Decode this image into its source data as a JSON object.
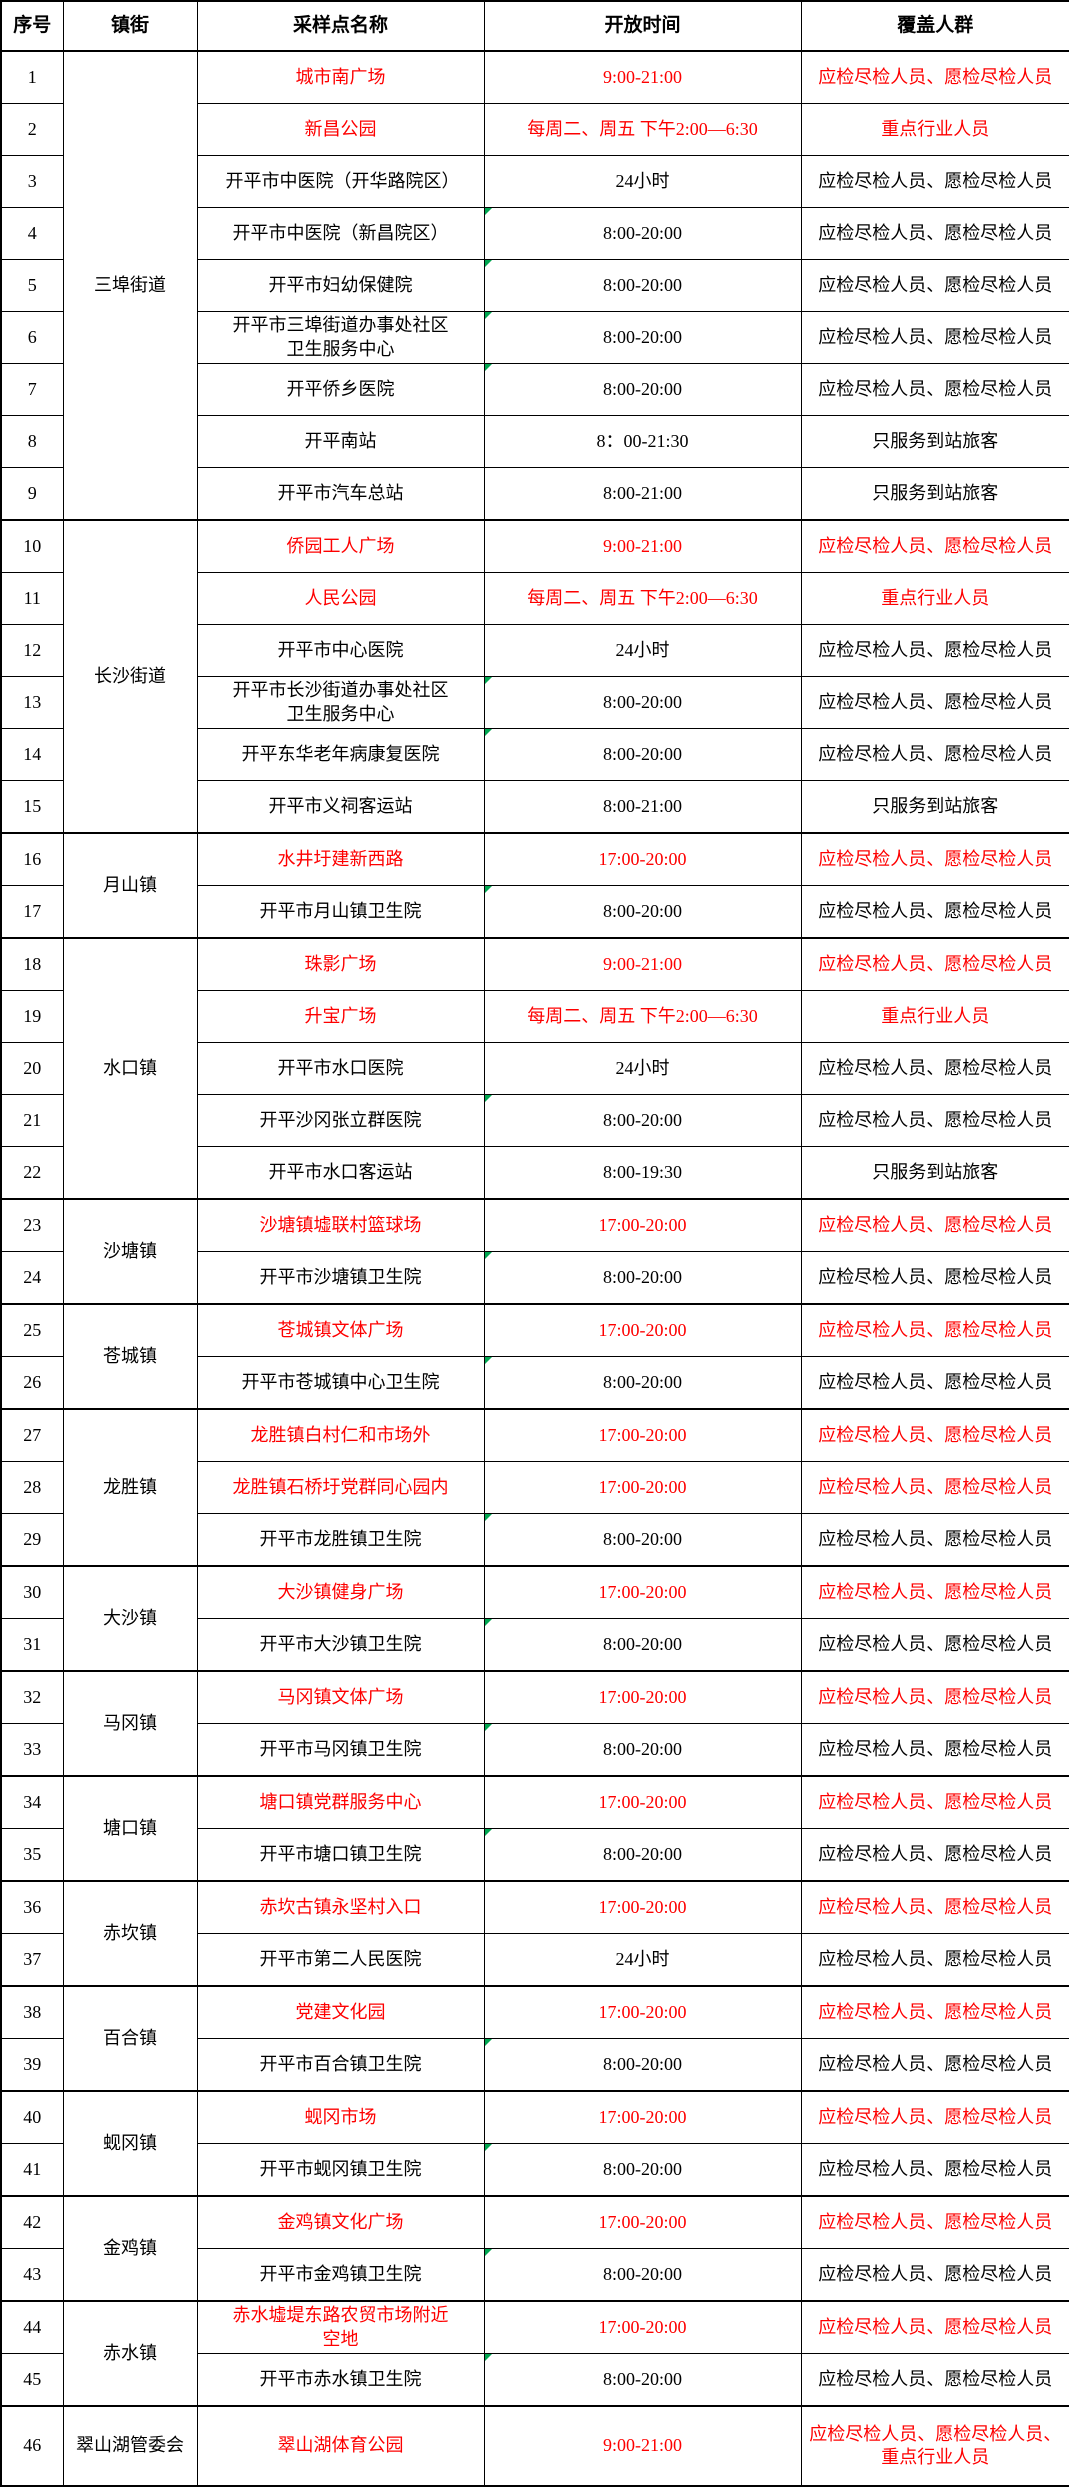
{
  "table": {
    "colors": {
      "red_text": "#fe0000",
      "black_text": "#000000",
      "marker_green": "#00a650",
      "border": "#000000"
    },
    "columns": [
      {
        "label": "序号"
      },
      {
        "label": "镇街"
      },
      {
        "label": "采样点名称"
      },
      {
        "label": "开放时间"
      },
      {
        "label": "覆盖人群"
      }
    ],
    "rows": [
      {
        "no": 1,
        "town": "三埠街道",
        "town_rowspan": 9,
        "group_start": true,
        "name": "城市南广场",
        "time": "9:00-21:00",
        "crowd": "应检尽检人员、愿检尽检人员",
        "red": true,
        "marker": false,
        "tall": false
      },
      {
        "no": 2,
        "group_start": false,
        "name": "新昌公园",
        "time": "每周二、周五 下午2:00—6:30",
        "crowd": "重点行业人员",
        "red": true,
        "marker": false,
        "tall": false
      },
      {
        "no": 3,
        "group_start": false,
        "name": "开平市中医院（开华路院区）",
        "time": "24小时",
        "crowd": "应检尽检人员、愿检尽检人员",
        "red": false,
        "marker": false,
        "tall": false
      },
      {
        "no": 4,
        "group_start": false,
        "name": "开平市中医院（新昌院区）",
        "time": "8:00-20:00",
        "crowd": "应检尽检人员、愿检尽检人员",
        "red": false,
        "marker": true,
        "tall": false
      },
      {
        "no": 5,
        "group_start": false,
        "name": "开平市妇幼保健院",
        "time": "8:00-20:00",
        "crowd": "应检尽检人员、愿检尽检人员",
        "red": false,
        "marker": true,
        "tall": false
      },
      {
        "no": 6,
        "group_start": false,
        "name": "开平市三埠街道办事处社区卫生服务中心",
        "time": "8:00-20:00",
        "crowd": "应检尽检人员、愿检尽检人员",
        "red": false,
        "marker": true,
        "tall": false
      },
      {
        "no": 7,
        "group_start": false,
        "name": "开平侨乡医院",
        "time": "8:00-20:00",
        "crowd": "应检尽检人员、愿检尽检人员",
        "red": false,
        "marker": true,
        "tall": false
      },
      {
        "no": 8,
        "group_start": false,
        "name": "开平南站",
        "time": "8：00-21:30",
        "crowd": "只服务到站旅客",
        "red": false,
        "marker": false,
        "tall": false
      },
      {
        "no": 9,
        "group_start": false,
        "name": "开平市汽车总站",
        "time": "8:00-21:00",
        "crowd": "只服务到站旅客",
        "red": false,
        "marker": false,
        "tall": false
      },
      {
        "no": 10,
        "town": "长沙街道",
        "town_rowspan": 6,
        "group_start": true,
        "name": "侨园工人广场",
        "time": "9:00-21:00",
        "crowd": "应检尽检人员、愿检尽检人员",
        "red": true,
        "marker": false,
        "tall": false
      },
      {
        "no": 11,
        "group_start": false,
        "name": "人民公园",
        "time": "每周二、周五 下午2:00—6:30",
        "crowd": "重点行业人员",
        "red": true,
        "marker": false,
        "tall": false
      },
      {
        "no": 12,
        "group_start": false,
        "name": "开平市中心医院",
        "time": "24小时",
        "crowd": "应检尽检人员、愿检尽检人员",
        "red": false,
        "marker": false,
        "tall": false
      },
      {
        "no": 13,
        "group_start": false,
        "name": "开平市长沙街道办事处社区卫生服务中心",
        "time": "8:00-20:00",
        "crowd": "应检尽检人员、愿检尽检人员",
        "red": false,
        "marker": true,
        "tall": false
      },
      {
        "no": 14,
        "group_start": false,
        "name": "开平东华老年病康复医院",
        "time": "8:00-20:00",
        "crowd": "应检尽检人员、愿检尽检人员",
        "red": false,
        "marker": true,
        "tall": false
      },
      {
        "no": 15,
        "group_start": false,
        "name": "开平市义祠客运站",
        "time": "8:00-21:00",
        "crowd": "只服务到站旅客",
        "red": false,
        "marker": false,
        "tall": false
      },
      {
        "no": 16,
        "town": "月山镇",
        "town_rowspan": 2,
        "group_start": true,
        "name": "水井圩建新西路",
        "time": "17:00-20:00",
        "crowd": "应检尽检人员、愿检尽检人员",
        "red": true,
        "marker": false,
        "tall": false
      },
      {
        "no": 17,
        "group_start": false,
        "name": "开平市月山镇卫生院",
        "time": "8:00-20:00",
        "crowd": "应检尽检人员、愿检尽检人员",
        "red": false,
        "marker": true,
        "tall": false
      },
      {
        "no": 18,
        "town": "水口镇",
        "town_rowspan": 5,
        "group_start": true,
        "name": "珠影广场",
        "time": "9:00-21:00",
        "crowd": "应检尽检人员、愿检尽检人员",
        "red": true,
        "marker": false,
        "tall": false
      },
      {
        "no": 19,
        "group_start": false,
        "name": "升宝广场",
        "time": "每周二、周五 下午2:00—6:30",
        "crowd": "重点行业人员",
        "red": true,
        "marker": false,
        "tall": false
      },
      {
        "no": 20,
        "group_start": false,
        "name": "开平市水口医院",
        "time": "24小时",
        "crowd": "应检尽检人员、愿检尽检人员",
        "red": false,
        "marker": false,
        "tall": false
      },
      {
        "no": 21,
        "group_start": false,
        "name": "开平沙冈张立群医院",
        "time": "8:00-20:00",
        "crowd": "应检尽检人员、愿检尽检人员",
        "red": false,
        "marker": true,
        "tall": false
      },
      {
        "no": 22,
        "group_start": false,
        "name": "开平市水口客运站",
        "time": "8:00-19:30",
        "crowd": "只服务到站旅客",
        "red": false,
        "marker": false,
        "tall": false
      },
      {
        "no": 23,
        "town": "沙塘镇",
        "town_rowspan": 2,
        "group_start": true,
        "name": "沙塘镇墟联村篮球场",
        "time": "17:00-20:00",
        "crowd": "应检尽检人员、愿检尽检人员",
        "red": true,
        "marker": false,
        "tall": false
      },
      {
        "no": 24,
        "group_start": false,
        "name": "开平市沙塘镇卫生院",
        "time": "8:00-20:00",
        "crowd": "应检尽检人员、愿检尽检人员",
        "red": false,
        "marker": true,
        "tall": false
      },
      {
        "no": 25,
        "town": "苍城镇",
        "town_rowspan": 2,
        "group_start": true,
        "name": "苍城镇文体广场",
        "time": "17:00-20:00",
        "crowd": "应检尽检人员、愿检尽检人员",
        "red": true,
        "marker": false,
        "tall": false
      },
      {
        "no": 26,
        "group_start": false,
        "name": "开平市苍城镇中心卫生院",
        "time": "8:00-20:00",
        "crowd": "应检尽检人员、愿检尽检人员",
        "red": false,
        "marker": true,
        "tall": false
      },
      {
        "no": 27,
        "town": "龙胜镇",
        "town_rowspan": 3,
        "group_start": true,
        "name": "龙胜镇白村仁和市场外",
        "time": "17:00-20:00",
        "crowd": "应检尽检人员、愿检尽检人员",
        "red": true,
        "marker": false,
        "tall": false
      },
      {
        "no": 28,
        "group_start": false,
        "name": "龙胜镇石桥圩党群同心园内",
        "time": "17:00-20:00",
        "crowd": "应检尽检人员、愿检尽检人员",
        "red": true,
        "marker": false,
        "tall": false
      },
      {
        "no": 29,
        "group_start": false,
        "name": "开平市龙胜镇卫生院",
        "time": "8:00-20:00",
        "crowd": "应检尽检人员、愿检尽检人员",
        "red": false,
        "marker": true,
        "tall": false
      },
      {
        "no": 30,
        "town": "大沙镇",
        "town_rowspan": 2,
        "group_start": true,
        "name": "大沙镇健身广场",
        "time": "17:00-20:00",
        "crowd": "应检尽检人员、愿检尽检人员",
        "red": true,
        "marker": false,
        "tall": false
      },
      {
        "no": 31,
        "group_start": false,
        "name": "开平市大沙镇卫生院",
        "time": "8:00-20:00",
        "crowd": "应检尽检人员、愿检尽检人员",
        "red": false,
        "marker": true,
        "tall": false
      },
      {
        "no": 32,
        "town": "马冈镇",
        "town_rowspan": 2,
        "group_start": true,
        "name": "马冈镇文体广场",
        "time": "17:00-20:00",
        "crowd": "应检尽检人员、愿检尽检人员",
        "red": true,
        "marker": false,
        "tall": false
      },
      {
        "no": 33,
        "group_start": false,
        "name": "开平市马冈镇卫生院",
        "time": "8:00-20:00",
        "crowd": "应检尽检人员、愿检尽检人员",
        "red": false,
        "marker": true,
        "tall": false
      },
      {
        "no": 34,
        "town": "塘口镇",
        "town_rowspan": 2,
        "group_start": true,
        "name": "塘口镇党群服务中心",
        "time": "17:00-20:00",
        "crowd": "应检尽检人员、愿检尽检人员",
        "red": true,
        "marker": false,
        "tall": false
      },
      {
        "no": 35,
        "group_start": false,
        "name": "开平市塘口镇卫生院",
        "time": "8:00-20:00",
        "crowd": "应检尽检人员、愿检尽检人员",
        "red": false,
        "marker": true,
        "tall": false
      },
      {
        "no": 36,
        "town": "赤坎镇",
        "town_rowspan": 2,
        "group_start": true,
        "name": "赤坎古镇永坚村入口",
        "time": "17:00-20:00",
        "crowd": "应检尽检人员、愿检尽检人员",
        "red": true,
        "marker": false,
        "tall": false
      },
      {
        "no": 37,
        "group_start": false,
        "name": "开平市第二人民医院",
        "time": "24小时",
        "crowd": "应检尽检人员、愿检尽检人员",
        "red": false,
        "marker": false,
        "tall": false
      },
      {
        "no": 38,
        "town": "百合镇",
        "town_rowspan": 2,
        "group_start": true,
        "name": "党建文化园",
        "time": "17:00-20:00",
        "crowd": "应检尽检人员、愿检尽检人员",
        "red": true,
        "marker": false,
        "tall": false
      },
      {
        "no": 39,
        "group_start": false,
        "name": "开平市百合镇卫生院",
        "time": "8:00-20:00",
        "crowd": "应检尽检人员、愿检尽检人员",
        "red": false,
        "marker": true,
        "tall": false
      },
      {
        "no": 40,
        "town": "蚬冈镇",
        "town_rowspan": 2,
        "group_start": true,
        "name": "蚬冈市场",
        "time": "17:00-20:00",
        "crowd": "应检尽检人员、愿检尽检人员",
        "red": true,
        "marker": false,
        "tall": false
      },
      {
        "no": 41,
        "group_start": false,
        "name": "开平市蚬冈镇卫生院",
        "time": "8:00-20:00",
        "crowd": "应检尽检人员、愿检尽检人员",
        "red": false,
        "marker": true,
        "tall": false
      },
      {
        "no": 42,
        "town": "金鸡镇",
        "town_rowspan": 2,
        "group_start": true,
        "name": "金鸡镇文化广场",
        "time": "17:00-20:00",
        "crowd": "应检尽检人员、愿检尽检人员",
        "red": true,
        "marker": false,
        "tall": false
      },
      {
        "no": 43,
        "group_start": false,
        "name": "开平市金鸡镇卫生院",
        "time": "8:00-20:00",
        "crowd": "应检尽检人员、愿检尽检人员",
        "red": false,
        "marker": true,
        "tall": false
      },
      {
        "no": 44,
        "town": "赤水镇",
        "town_rowspan": 2,
        "group_start": true,
        "name": "赤水墟堤东路农贸市场附近空地",
        "time": "17:00-20:00",
        "crowd": "应检尽检人员、愿检尽检人员",
        "red": true,
        "marker": false,
        "tall": false
      },
      {
        "no": 45,
        "group_start": false,
        "name": "开平市赤水镇卫生院",
        "time": "8:00-20:00",
        "crowd": "应检尽检人员、愿检尽检人员",
        "red": false,
        "marker": true,
        "tall": false
      },
      {
        "no": 46,
        "town": "翠山湖管委会",
        "town_rowspan": 1,
        "group_start": true,
        "name": "翠山湖体育公园",
        "time": "9:00-21:00",
        "crowd": "应检尽检人员、愿检尽检人员、重点行业人员",
        "red": true,
        "marker": false,
        "tall": true
      }
    ]
  }
}
